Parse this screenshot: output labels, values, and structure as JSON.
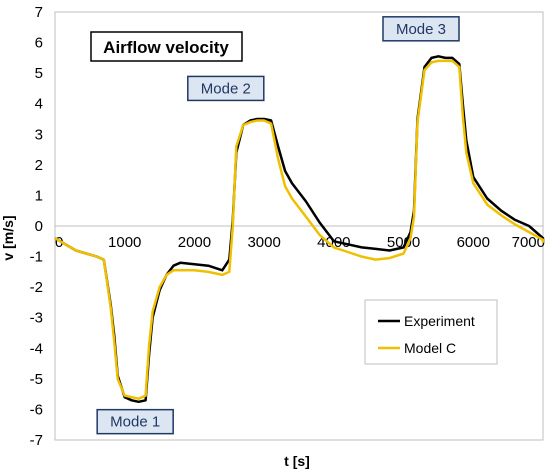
{
  "chart_data": {
    "type": "line",
    "title": "Airflow velocity",
    "xlabel": "t [s]",
    "ylabel": "v [m/s]",
    "xlim": [
      0,
      7000
    ],
    "ylim": [
      -7,
      7
    ],
    "x_ticks": [
      "0",
      "1000",
      "2000",
      "3000",
      "4000",
      "5000",
      "6000",
      "7000"
    ],
    "y_ticks": [
      "-7",
      "-6",
      "-5",
      "-4",
      "-3",
      "-2",
      "-1",
      "0",
      "1",
      "2",
      "3",
      "4",
      "5",
      "6",
      "7"
    ],
    "grid": "zero-line only",
    "legend_position": "bottom-right",
    "annotations": [
      {
        "text": "Mode 1",
        "x": 1150,
        "y": -6.4
      },
      {
        "text": "Mode 2",
        "x": 2450,
        "y": 4.5
      },
      {
        "text": "Mode 3",
        "x": 5250,
        "y": 6.45
      }
    ],
    "series": [
      {
        "name": "Experiment",
        "color": "#000000",
        "x": [
          0,
          300,
          600,
          700,
          800,
          850,
          900,
          1000,
          1100,
          1200,
          1300,
          1350,
          1400,
          1500,
          1600,
          1700,
          1800,
          2000,
          2200,
          2400,
          2500,
          2550,
          2600,
          2700,
          2800,
          2900,
          3000,
          3100,
          3200,
          3300,
          3400,
          3600,
          3800,
          4000,
          4200,
          4400,
          4600,
          4800,
          5000,
          5100,
          5150,
          5200,
          5300,
          5400,
          5500,
          5600,
          5700,
          5800,
          5850,
          5900,
          6000,
          6200,
          6400,
          6600,
          6800,
          7000,
          7100
        ],
        "y": [
          -0.4,
          -0.8,
          -1.0,
          -1.1,
          -2.6,
          -3.6,
          -4.9,
          -5.6,
          -5.7,
          -5.75,
          -5.7,
          -4.2,
          -3.0,
          -2.1,
          -1.6,
          -1.3,
          -1.2,
          -1.25,
          -1.3,
          -1.45,
          -1.1,
          0.2,
          2.4,
          3.3,
          3.45,
          3.5,
          3.5,
          3.45,
          2.6,
          1.8,
          1.4,
          0.8,
          0.1,
          -0.5,
          -0.6,
          -0.7,
          -0.75,
          -0.8,
          -0.7,
          -0.2,
          0.5,
          3.5,
          5.2,
          5.5,
          5.55,
          5.5,
          5.5,
          5.3,
          4.0,
          2.8,
          1.6,
          0.9,
          0.5,
          0.2,
          0.0,
          -0.4,
          -0.5
        ]
      },
      {
        "name": "Model C",
        "color": "#f0c000",
        "x": [
          0,
          300,
          600,
          700,
          800,
          850,
          900,
          1000,
          1100,
          1200,
          1300,
          1350,
          1400,
          1500,
          1600,
          1700,
          1800,
          2000,
          2200,
          2400,
          2500,
          2550,
          2600,
          2700,
          2800,
          2900,
          3000,
          3100,
          3200,
          3300,
          3400,
          3600,
          3800,
          4000,
          4200,
          4400,
          4600,
          4800,
          5000,
          5100,
          5150,
          5200,
          5300,
          5400,
          5500,
          5600,
          5700,
          5800,
          5850,
          5900,
          6000,
          6200,
          6400,
          6600,
          6800,
          7000,
          7100
        ],
        "y": [
          -0.4,
          -0.8,
          -1.0,
          -1.1,
          -2.7,
          -3.8,
          -5.0,
          -5.55,
          -5.6,
          -5.65,
          -5.55,
          -3.9,
          -2.8,
          -2.0,
          -1.6,
          -1.45,
          -1.45,
          -1.45,
          -1.5,
          -1.6,
          -1.5,
          0.0,
          2.6,
          3.3,
          3.4,
          3.45,
          3.45,
          3.35,
          2.2,
          1.3,
          0.9,
          0.3,
          -0.3,
          -0.7,
          -0.85,
          -1.0,
          -1.1,
          -1.05,
          -0.9,
          -0.4,
          0.3,
          3.4,
          5.1,
          5.35,
          5.4,
          5.4,
          5.4,
          5.2,
          3.6,
          2.4,
          1.4,
          0.7,
          0.35,
          0.05,
          -0.2,
          -0.45,
          -0.55
        ]
      }
    ]
  }
}
